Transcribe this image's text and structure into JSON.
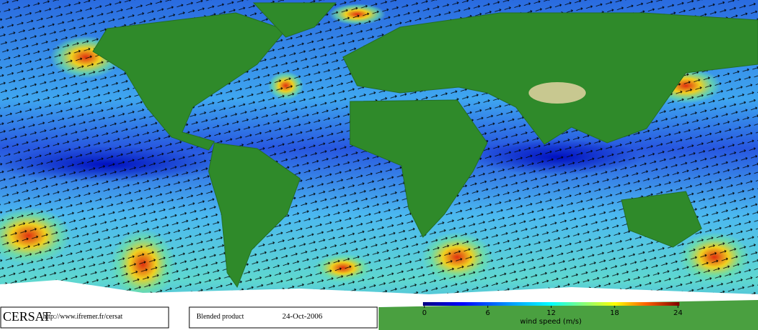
{
  "logo": "CERSAT",
  "url": "http://www.ifremer.fr/cersat",
  "product": "Blended product",
  "date": "24-Oct-2006",
  "colorbar": {
    "label": "wind speed (m/s)",
    "lim": [
      0,
      24
    ],
    "ticks": [
      0,
      6,
      12,
      18,
      24
    ]
  }
}
